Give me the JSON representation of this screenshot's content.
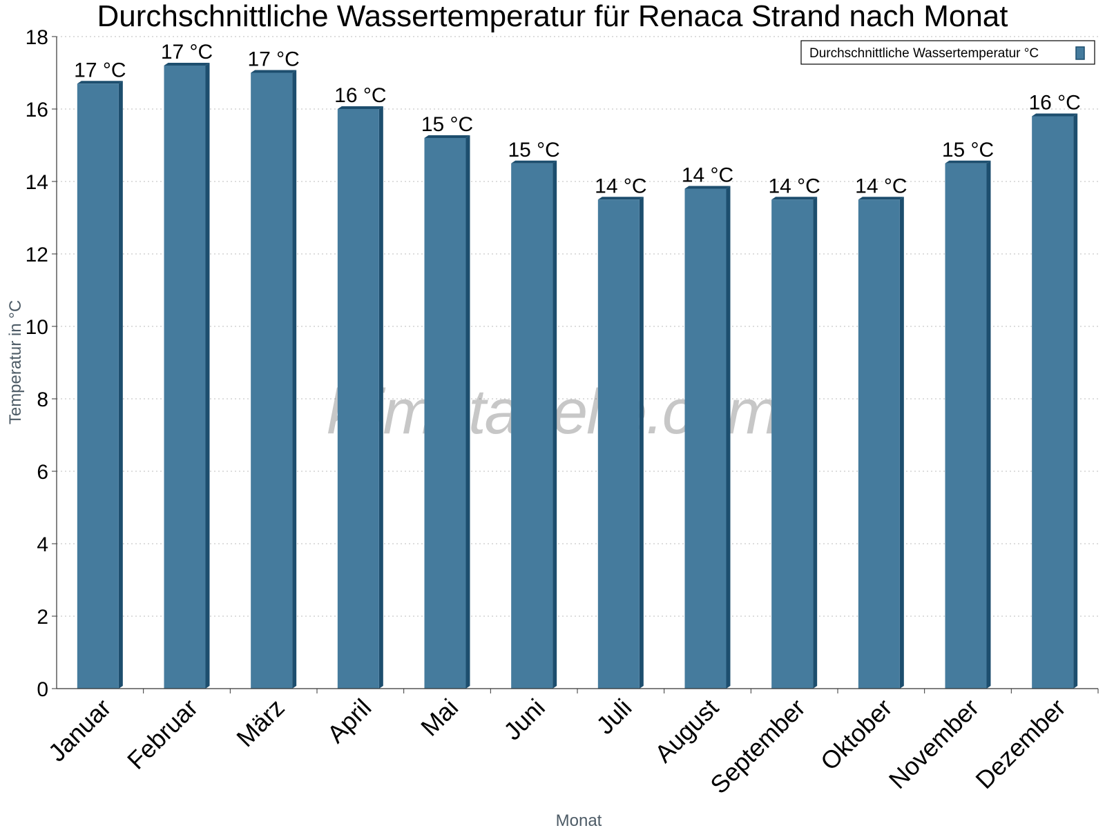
{
  "watermark": "klimatabelle.com",
  "colors": {
    "bar_front": "#457b9d",
    "bar_side": "#1d4e6e",
    "bar_top": "#1d4e6e",
    "grid": "#bbbbbb",
    "axis": "#333333"
  },
  "chart_data": {
    "type": "bar",
    "title": "Durchschnittliche Wassertemperatur für Renaca Strand nach Monat",
    "xlabel": "Monat",
    "ylabel": "Temperatur in °C",
    "ylim": [
      0,
      18
    ],
    "yticks": [
      0,
      2,
      4,
      6,
      8,
      10,
      12,
      14,
      16,
      18
    ],
    "grid": true,
    "legend_position": "top-right",
    "categories": [
      "Januar",
      "Februar",
      "März",
      "April",
      "Mai",
      "Juni",
      "Juli",
      "August",
      "September",
      "Oktober",
      "November",
      "Dezember"
    ],
    "series": [
      {
        "name": "Durchschnittliche Wassertemperatur °C",
        "values": [
          16.7,
          17.2,
          17.0,
          16.0,
          15.2,
          14.5,
          13.5,
          13.8,
          13.5,
          13.5,
          14.5,
          15.8
        ],
        "labels": [
          "17 °C",
          "17 °C",
          "17 °C",
          "16 °C",
          "15 °C",
          "15 °C",
          "14 °C",
          "14 °C",
          "14 °C",
          "14 °C",
          "15 °C",
          "16 °C"
        ]
      }
    ]
  }
}
